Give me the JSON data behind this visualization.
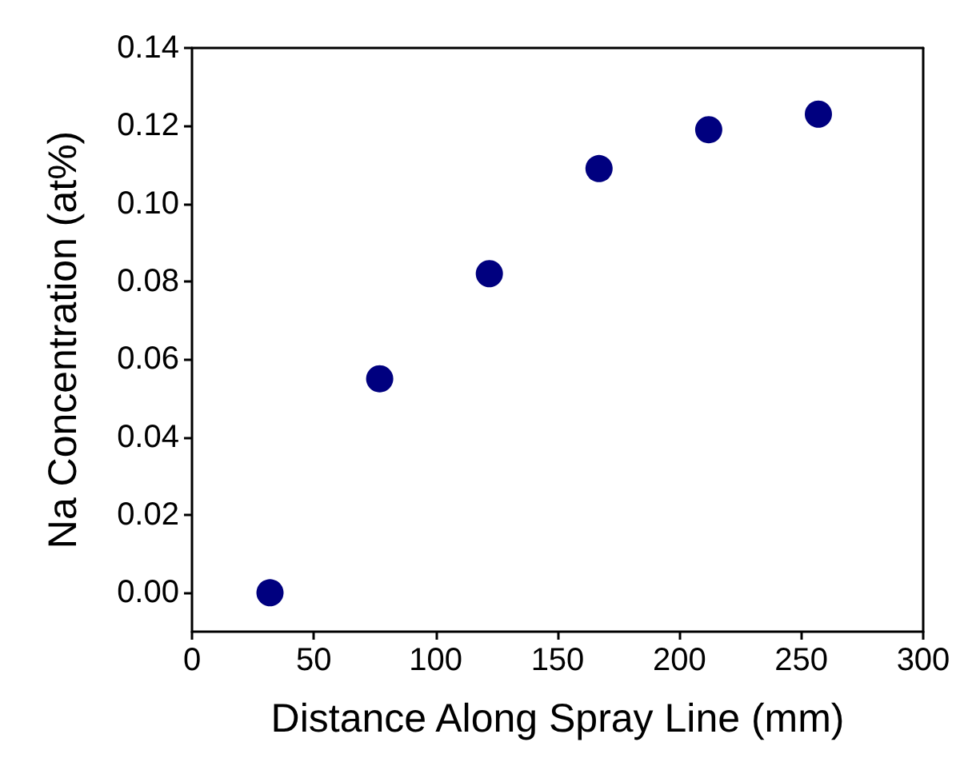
{
  "chart_data": {
    "type": "scatter",
    "xlabel": "Distance Along Spray Line (mm)",
    "ylabel": "Na Concentration (at%)",
    "x": [
      32,
      77,
      122,
      167,
      212,
      257
    ],
    "series": [
      {
        "color": "#00007f",
        "values": [
          0,
          0.055,
          0.082,
          0.109,
          0.119,
          0.123
        ]
      }
    ],
    "xlim": [
      0,
      300
    ],
    "xticks": [
      0,
      50,
      100,
      150,
      200,
      250,
      300
    ],
    "ylim": [
      -0.01,
      0.14
    ],
    "yticks": [
      {
        "value": 0,
        "label": "0.00"
      },
      {
        "value": 0.02,
        "label": "0.02"
      },
      {
        "value": 0.04,
        "label": "0.04"
      },
      {
        "value": 0.06,
        "label": "0.06"
      },
      {
        "value": 0.08,
        "label": "0.08"
      },
      {
        "value": 0.1,
        "label": "0.10"
      },
      {
        "value": 0.12,
        "label": "0.12"
      },
      {
        "value": 0.14,
        "label": "0.14"
      }
    ],
    "grid": false,
    "marker": "circle"
  }
}
